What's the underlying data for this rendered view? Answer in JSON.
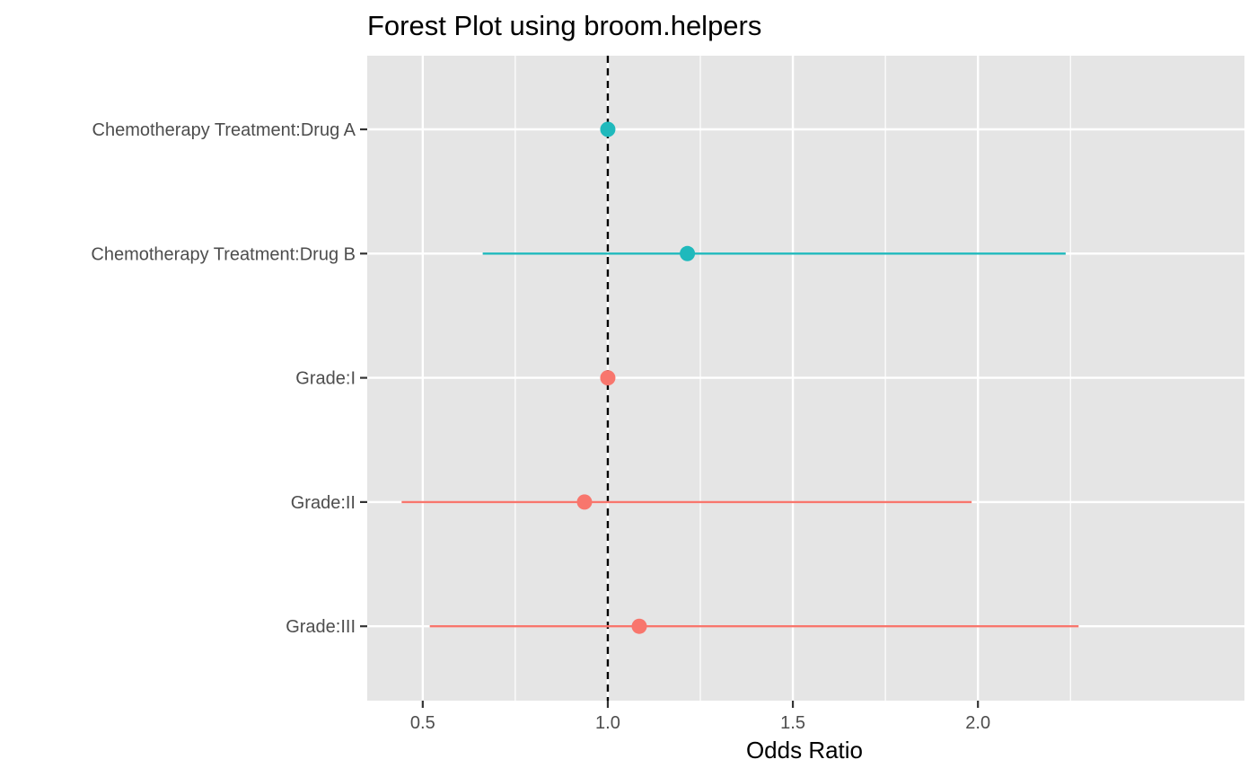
{
  "chart_data": {
    "type": "forest",
    "title": "Forest Plot using broom.helpers",
    "xlabel": "Odds Ratio",
    "ylabel": "",
    "xlim": [
      0.35,
      2.72
    ],
    "x_ticks": [
      {
        "value": 0.5,
        "label": "0.5"
      },
      {
        "value": 1.0,
        "label": "1.0"
      },
      {
        "value": 1.5,
        "label": "1.5"
      },
      {
        "value": 2.0,
        "label": "2.0"
      }
    ],
    "x_minor_ticks": [
      0.75,
      1.25,
      1.75,
      2.25
    ],
    "reference_line": 1.0,
    "grid": true,
    "legend": "none",
    "colors": {
      "panel": "#e5e5e5",
      "grid": "#ffffff",
      "variable_1": "#f8766d",
      "variable_2": "#1fb9bc",
      "reference": "#000000"
    },
    "rows": [
      {
        "label": "Chemotherapy Treatment:Drug A",
        "estimate": 1.0,
        "conf_low": null,
        "conf_high": null,
        "color_key": "variable_2"
      },
      {
        "label": "Chemotherapy Treatment:Drug B",
        "estimate": 1.215,
        "conf_low": 0.662,
        "conf_high": 2.237,
        "color_key": "variable_2"
      },
      {
        "label": "Grade:I",
        "estimate": 1.0,
        "conf_low": null,
        "conf_high": null,
        "color_key": "variable_1"
      },
      {
        "label": "Grade:II",
        "estimate": 0.937,
        "conf_low": 0.443,
        "conf_high": 1.983,
        "color_key": "variable_1"
      },
      {
        "label": "Grade:III",
        "estimate": 1.085,
        "conf_low": 0.519,
        "conf_high": 2.272,
        "color_key": "variable_1"
      }
    ]
  }
}
